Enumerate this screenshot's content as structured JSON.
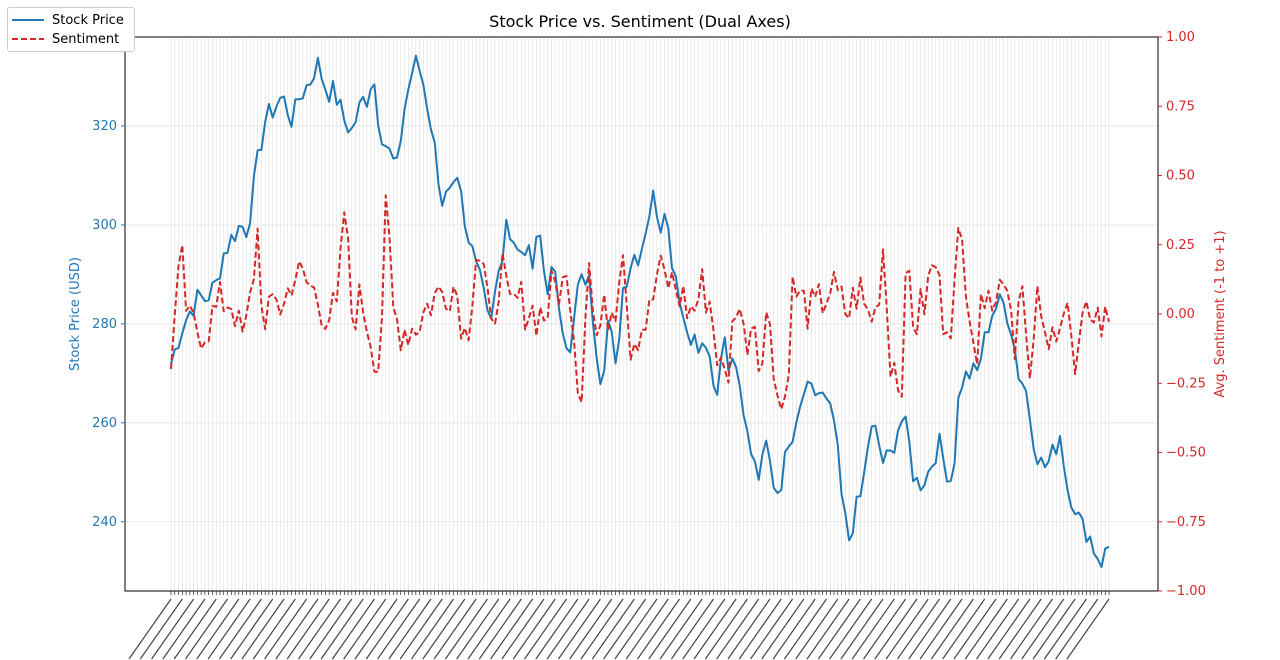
{
  "chart_data": {
    "type": "line",
    "title": "Stock Price vs. Sentiment (Dual Axes)",
    "ylabel": "Stock Price (USD)",
    "y2label": "Avg. Sentiment (-1 to +1)",
    "ylim": [
      226,
      338
    ],
    "y2lim": [
      -1.0,
      1.0
    ],
    "yticks": [
      240,
      260,
      280,
      300,
      320
    ],
    "y2ticks": [
      -1.0,
      -0.75,
      -0.5,
      -0.25,
      0.0,
      0.25,
      0.5,
      0.75,
      1.0
    ],
    "x_points": 250,
    "grid": "on",
    "legend": "top-left",
    "series": [
      {
        "name": "Stock Price",
        "axis": "left",
        "color": "#1f77b4",
        "style": "solid",
        "anchors": [
          [
            0,
            272
          ],
          [
            3,
            279
          ],
          [
            5,
            282
          ],
          [
            8,
            285.5
          ],
          [
            10,
            285
          ],
          [
            13,
            288
          ],
          [
            15,
            294
          ],
          [
            18,
            298
          ],
          [
            20,
            300
          ],
          [
            22,
            299
          ],
          [
            25,
            313
          ],
          [
            27,
            321
          ],
          [
            30,
            324
          ],
          [
            32,
            326
          ],
          [
            35,
            321
          ],
          [
            37,
            326
          ],
          [
            40,
            329
          ],
          [
            42,
            333
          ],
          [
            45,
            327
          ],
          [
            47,
            327
          ],
          [
            50,
            321
          ],
          [
            52,
            319
          ],
          [
            55,
            325
          ],
          [
            57,
            326
          ],
          [
            58,
            332
          ],
          [
            60,
            320
          ],
          [
            62,
            316
          ],
          [
            65,
            311
          ],
          [
            67,
            323
          ],
          [
            70,
            333
          ],
          [
            72,
            331
          ],
          [
            75,
            320
          ],
          [
            78,
            305
          ],
          [
            81,
            306
          ],
          [
            83,
            308
          ],
          [
            85,
            296
          ],
          [
            88,
            295
          ],
          [
            90,
            288
          ],
          [
            92,
            281
          ],
          [
            95,
            292
          ],
          [
            97,
            301
          ],
          [
            100,
            294
          ],
          [
            102,
            296
          ],
          [
            104,
            291
          ],
          [
            106,
            299
          ],
          [
            108,
            287
          ],
          [
            110,
            291
          ],
          [
            112,
            283
          ],
          [
            115,
            273
          ],
          [
            117,
            287
          ],
          [
            120,
            290
          ],
          [
            121,
            285
          ],
          [
            122,
            278
          ],
          [
            124,
            268
          ],
          [
            126,
            282
          ],
          [
            128,
            270
          ],
          [
            130,
            287
          ],
          [
            133,
            294
          ],
          [
            135,
            294
          ],
          [
            137,
            301
          ],
          [
            139,
            306
          ],
          [
            141,
            300
          ],
          [
            142,
            305
          ],
          [
            144,
            294
          ],
          [
            146,
            288
          ],
          [
            148,
            279
          ],
          [
            150,
            278
          ],
          [
            152,
            274
          ],
          [
            154,
            276
          ],
          [
            156,
            267
          ],
          [
            157,
            263
          ],
          [
            159,
            280
          ],
          [
            161,
            270
          ],
          [
            163,
            274
          ],
          [
            165,
            262
          ],
          [
            167,
            256
          ],
          [
            169,
            248
          ],
          [
            171,
            258
          ],
          [
            173,
            247
          ],
          [
            175,
            246
          ],
          [
            177,
            253
          ],
          [
            180,
            258
          ],
          [
            182,
            266
          ],
          [
            185,
            266
          ],
          [
            187,
            266
          ],
          [
            189,
            263
          ],
          [
            191,
            260
          ],
          [
            193,
            245
          ],
          [
            195,
            236
          ],
          [
            197,
            242
          ],
          [
            199,
            246
          ],
          [
            201,
            258
          ],
          [
            203,
            258
          ],
          [
            205,
            252
          ],
          [
            207,
            253
          ],
          [
            210,
            261
          ],
          [
            212,
            258
          ],
          [
            214,
            248
          ],
          [
            216,
            248
          ],
          [
            218,
            250
          ],
          [
            221,
            256
          ],
          [
            223,
            251
          ],
          [
            225,
            248
          ],
          [
            227,
            268
          ],
          [
            230,
            270
          ],
          [
            232,
            270
          ],
          [
            234,
            276
          ],
          [
            236,
            282
          ],
          [
            238,
            284
          ],
          [
            240,
            284
          ],
          [
            242,
            279
          ],
          [
            244,
            270
          ],
          [
            246,
            267
          ],
          [
            248,
            258
          ],
          [
            250,
            252
          ],
          [
            252,
            251
          ],
          [
            254,
            254
          ],
          [
            256,
            258
          ],
          [
            258,
            247
          ],
          [
            260,
            244
          ],
          [
            262,
            239
          ],
          [
            264,
            238
          ],
          [
            266,
            234
          ],
          [
            268,
            232
          ],
          [
            270,
            235
          ]
        ],
        "noise": 2.5
      },
      {
        "name": "Sentiment",
        "axis": "right",
        "color": "#d62728",
        "style": "dashed",
        "anchors": [
          [
            0,
            -0.15
          ],
          [
            3,
            0.2
          ],
          [
            5,
            -0.05
          ],
          [
            10,
            -0.05
          ],
          [
            15,
            0.05
          ],
          [
            18,
            0.05
          ],
          [
            20,
            -0.1
          ],
          [
            22,
            -0.05
          ],
          [
            25,
            0.3
          ],
          [
            27,
            -0.1
          ],
          [
            30,
            0.1
          ],
          [
            32,
            0.0
          ],
          [
            35,
            0.15
          ],
          [
            40,
            0.1
          ],
          [
            45,
            0.0
          ],
          [
            48,
            0.0
          ],
          [
            50,
            0.4
          ],
          [
            52,
            0.0
          ],
          [
            55,
            0.05
          ],
          [
            57,
            -0.05
          ],
          [
            60,
            -0.2
          ],
          [
            62,
            0.4
          ],
          [
            64,
            0.0
          ],
          [
            66,
            -0.05
          ],
          [
            70,
            -0.05
          ],
          [
            75,
            0.05
          ],
          [
            80,
            0.1
          ],
          [
            82,
            0.1
          ],
          [
            85,
            -0.1
          ],
          [
            88,
            0.25
          ],
          [
            90,
            0.15
          ],
          [
            92,
            -0.1
          ],
          [
            95,
            0.2
          ],
          [
            97,
            0.0
          ],
          [
            100,
            0.05
          ],
          [
            105,
            0.0
          ],
          [
            108,
            0.0
          ],
          [
            110,
            0.1
          ],
          [
            115,
            0.1
          ],
          [
            118,
            -0.35
          ],
          [
            120,
            0.3
          ],
          [
            122,
            -0.1
          ],
          [
            125,
            0.0
          ],
          [
            128,
            0.05
          ],
          [
            130,
            0.3
          ],
          [
            132,
            -0.1
          ],
          [
            135,
            -0.05
          ],
          [
            138,
            0.0
          ],
          [
            140,
            0.15
          ],
          [
            145,
            0.1
          ],
          [
            150,
            0.0
          ],
          [
            153,
            0.1
          ],
          [
            155,
            0.05
          ],
          [
            158,
            -0.2
          ],
          [
            160,
            -0.25
          ],
          [
            163,
            0.1
          ],
          [
            165,
            -0.1
          ],
          [
            168,
            0.0
          ],
          [
            170,
            -0.2
          ],
          [
            172,
            0.05
          ],
          [
            175,
            -0.35
          ],
          [
            177,
            -0.3
          ],
          [
            179,
            0.1
          ],
          [
            181,
            0.05
          ],
          [
            185,
            0.0
          ],
          [
            190,
            0.1
          ],
          [
            192,
            0.05
          ],
          [
            195,
            0.0
          ],
          [
            198,
            0.1
          ],
          [
            200,
            0.0
          ],
          [
            203,
            0.0
          ],
          [
            205,
            0.25
          ],
          [
            207,
            -0.15
          ],
          [
            209,
            -0.2
          ],
          [
            210,
            -0.3
          ],
          [
            212,
            0.2
          ],
          [
            214,
            -0.05
          ],
          [
            217,
            0.05
          ],
          [
            220,
            0.2
          ],
          [
            222,
            0.0
          ],
          [
            225,
            0.0
          ],
          [
            227,
            0.3
          ],
          [
            230,
            0.05
          ],
          [
            232,
            -0.15
          ],
          [
            235,
            0.2
          ],
          [
            237,
            0.0
          ],
          [
            240,
            0.2
          ],
          [
            243,
            -0.1
          ],
          [
            245,
            0.2
          ],
          [
            247,
            -0.3
          ],
          [
            250,
            0.1
          ],
          [
            252,
            -0.2
          ],
          [
            255,
            0.0
          ],
          [
            258,
            0.05
          ],
          [
            260,
            -0.25
          ],
          [
            262,
            -0.1
          ],
          [
            265,
            0.05
          ],
          [
            268,
            -0.05
          ],
          [
            270,
            0.0
          ]
        ],
        "noise": 0.09
      }
    ]
  }
}
